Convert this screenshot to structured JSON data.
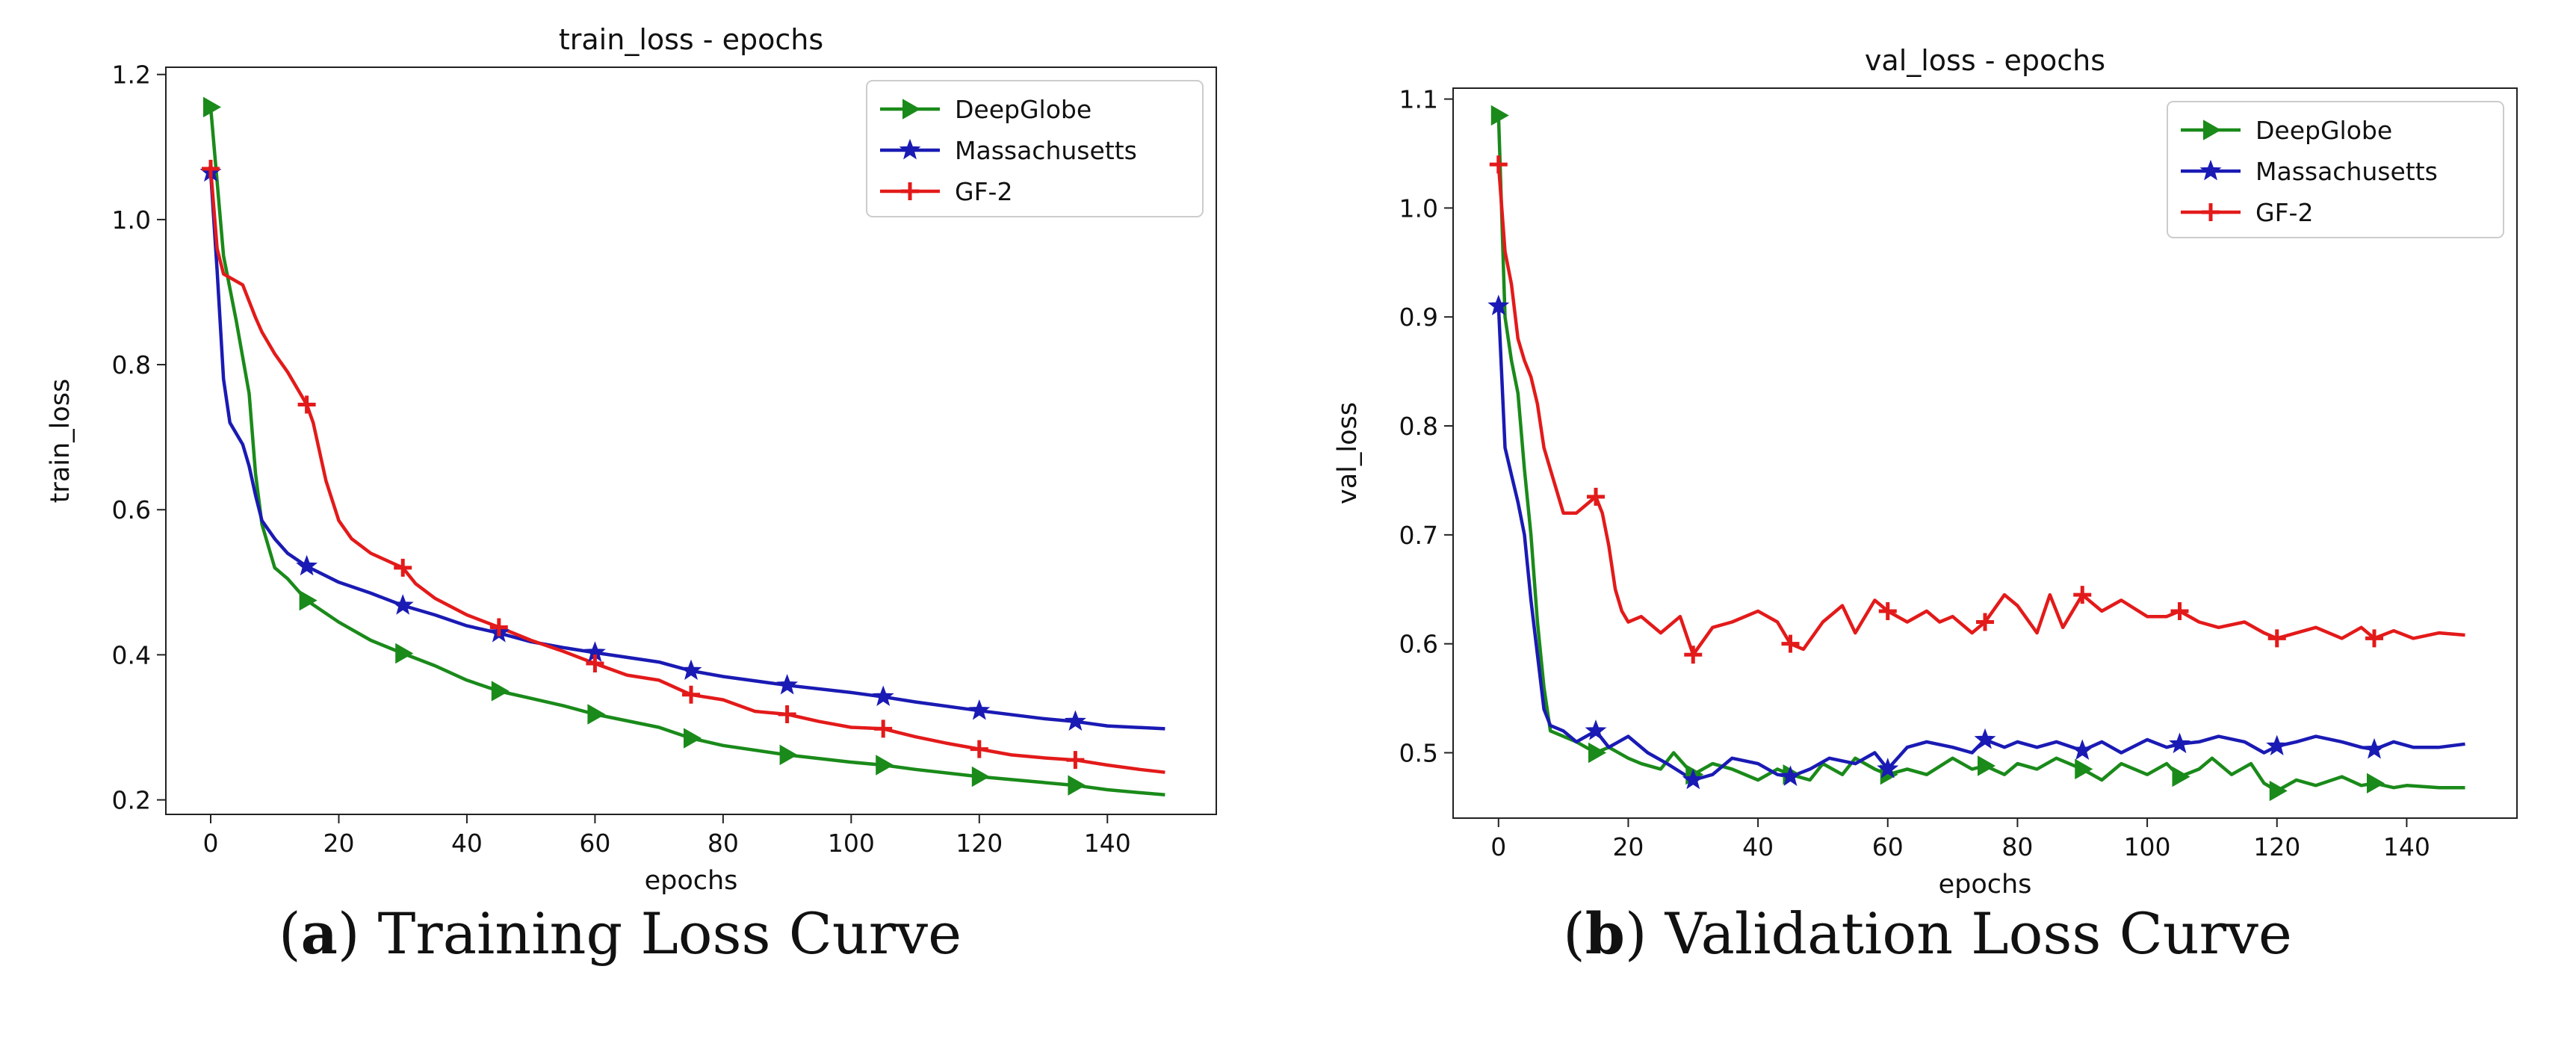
{
  "figure": {
    "captions": [
      {
        "open": "(",
        "letter": "a",
        "rest": ") Training Loss Curve"
      },
      {
        "open": "(",
        "letter": "b",
        "rest": ") Validation Loss Curve"
      }
    ]
  },
  "chart_data": [
    {
      "type": "line",
      "title": "train_loss - epochs",
      "xlabel": "epochs",
      "ylabel": "train_loss",
      "xlim": [
        -7,
        157
      ],
      "ylim": [
        0.18,
        1.21
      ],
      "xticks": [
        0,
        20,
        40,
        60,
        80,
        100,
        120,
        140
      ],
      "yticks": [
        0.2,
        0.4,
        0.6,
        0.8,
        1.0,
        1.2
      ],
      "ytick_labels": [
        "0.2",
        "0.4",
        "0.6",
        "0.8",
        "1.0",
        "1.2"
      ],
      "grid": false,
      "legend": "top-right",
      "marker_x": [
        0,
        15,
        30,
        45,
        60,
        75,
        90,
        105,
        120,
        135
      ],
      "series": [
        {
          "name": "DeepGlobe",
          "color": "#1a8a1a",
          "marker": "triangle-right",
          "x": [
            0,
            2,
            4,
            6,
            7,
            8,
            10,
            12,
            15,
            20,
            25,
            30,
            35,
            40,
            45,
            50,
            55,
            60,
            70,
            75,
            80,
            90,
            100,
            105,
            110,
            120,
            130,
            135,
            140,
            145,
            149
          ],
          "y": [
            1.155,
            0.95,
            0.86,
            0.76,
            0.65,
            0.58,
            0.52,
            0.505,
            0.475,
            0.445,
            0.42,
            0.402,
            0.385,
            0.365,
            0.35,
            0.34,
            0.33,
            0.318,
            0.3,
            0.285,
            0.275,
            0.262,
            0.252,
            0.248,
            0.242,
            0.232,
            0.224,
            0.22,
            0.214,
            0.21,
            0.207
          ]
        },
        {
          "name": "Massachusetts",
          "color": "#1a1ab4",
          "marker": "star",
          "x": [
            0,
            1,
            2,
            3,
            4,
            5,
            6,
            7,
            8,
            10,
            12,
            15,
            20,
            25,
            30,
            35,
            40,
            45,
            50,
            55,
            60,
            70,
            75,
            80,
            90,
            100,
            105,
            110,
            120,
            130,
            135,
            140,
            149
          ],
          "y": [
            1.065,
            0.93,
            0.78,
            0.72,
            0.705,
            0.69,
            0.66,
            0.62,
            0.585,
            0.56,
            0.54,
            0.522,
            0.5,
            0.485,
            0.468,
            0.455,
            0.44,
            0.43,
            0.418,
            0.41,
            0.403,
            0.39,
            0.378,
            0.37,
            0.358,
            0.348,
            0.342,
            0.335,
            0.323,
            0.312,
            0.308,
            0.302,
            0.298
          ]
        },
        {
          "name": "GF-2",
          "color": "#e31a1a",
          "marker": "plus",
          "x": [
            0,
            1,
            2,
            3,
            5,
            7,
            8,
            10,
            12,
            15,
            16,
            18,
            20,
            22,
            25,
            30,
            32,
            35,
            40,
            45,
            50,
            55,
            60,
            65,
            70,
            75,
            80,
            85,
            90,
            95,
            100,
            105,
            110,
            115,
            120,
            125,
            130,
            135,
            140,
            145,
            149
          ],
          "y": [
            1.07,
            0.96,
            0.925,
            0.92,
            0.91,
            0.865,
            0.845,
            0.815,
            0.79,
            0.745,
            0.72,
            0.64,
            0.585,
            0.56,
            0.54,
            0.52,
            0.498,
            0.478,
            0.455,
            0.438,
            0.42,
            0.405,
            0.388,
            0.372,
            0.365,
            0.345,
            0.338,
            0.322,
            0.318,
            0.308,
            0.3,
            0.298,
            0.287,
            0.278,
            0.27,
            0.262,
            0.258,
            0.255,
            0.248,
            0.242,
            0.238
          ]
        }
      ]
    },
    {
      "type": "line",
      "title": "val_loss - epochs",
      "xlabel": "epochs",
      "ylabel": "val_loss",
      "xlim": [
        -7,
        157
      ],
      "ylim": [
        0.44,
        1.11
      ],
      "xticks": [
        0,
        20,
        40,
        60,
        80,
        100,
        120,
        140
      ],
      "yticks": [
        0.5,
        0.6,
        0.7,
        0.8,
        0.9,
        1.0,
        1.1
      ],
      "ytick_labels": [
        "0.5",
        "0.6",
        "0.7",
        "0.8",
        "0.9",
        "1.0",
        "1.1"
      ],
      "grid": false,
      "legend": "top-right",
      "marker_x": [
        0,
        15,
        30,
        45,
        60,
        75,
        90,
        105,
        120,
        135
      ],
      "series": [
        {
          "name": "DeepGlobe",
          "color": "#1a8a1a",
          "marker": "triangle-right",
          "x": [
            0,
            1,
            2,
            3,
            4,
            5,
            6,
            7,
            8,
            10,
            12,
            15,
            17,
            20,
            22,
            25,
            27,
            30,
            33,
            36,
            40,
            43,
            45,
            48,
            50,
            53,
            55,
            58,
            60,
            63,
            66,
            70,
            73,
            75,
            78,
            80,
            83,
            86,
            90,
            93,
            96,
            100,
            103,
            105,
            108,
            110,
            113,
            116,
            118,
            120,
            123,
            126,
            130,
            133,
            135,
            138,
            140,
            145,
            149
          ],
          "y": [
            1.085,
            0.9,
            0.86,
            0.83,
            0.76,
            0.7,
            0.62,
            0.56,
            0.52,
            0.515,
            0.51,
            0.5,
            0.505,
            0.495,
            0.49,
            0.485,
            0.5,
            0.48,
            0.49,
            0.485,
            0.475,
            0.485,
            0.48,
            0.475,
            0.49,
            0.48,
            0.495,
            0.485,
            0.48,
            0.485,
            0.48,
            0.495,
            0.485,
            0.488,
            0.48,
            0.49,
            0.485,
            0.495,
            0.485,
            0.475,
            0.49,
            0.48,
            0.49,
            0.478,
            0.485,
            0.495,
            0.48,
            0.49,
            0.472,
            0.465,
            0.475,
            0.47,
            0.478,
            0.47,
            0.472,
            0.468,
            0.47,
            0.468,
            0.468
          ]
        },
        {
          "name": "Massachusetts",
          "color": "#1a1ab4",
          "marker": "star",
          "x": [
            0,
            1,
            2,
            3,
            4,
            5,
            6,
            7,
            8,
            10,
            12,
            15,
            17,
            20,
            23,
            26,
            30,
            33,
            36,
            40,
            43,
            45,
            48,
            51,
            55,
            58,
            60,
            63,
            66,
            70,
            73,
            75,
            78,
            80,
            83,
            86,
            90,
            93,
            96,
            100,
            103,
            105,
            108,
            111,
            115,
            118,
            120,
            123,
            126,
            130,
            133,
            135,
            138,
            141,
            145,
            149
          ],
          "y": [
            0.91,
            0.78,
            0.755,
            0.73,
            0.7,
            0.64,
            0.59,
            0.54,
            0.525,
            0.52,
            0.51,
            0.52,
            0.505,
            0.515,
            0.5,
            0.49,
            0.475,
            0.48,
            0.495,
            0.49,
            0.48,
            0.478,
            0.485,
            0.495,
            0.49,
            0.5,
            0.485,
            0.505,
            0.51,
            0.505,
            0.5,
            0.512,
            0.505,
            0.51,
            0.505,
            0.51,
            0.502,
            0.51,
            0.5,
            0.512,
            0.505,
            0.508,
            0.51,
            0.515,
            0.51,
            0.5,
            0.506,
            0.51,
            0.515,
            0.51,
            0.505,
            0.503,
            0.51,
            0.505,
            0.505,
            0.508
          ]
        },
        {
          "name": "GF-2",
          "color": "#e31a1a",
          "marker": "plus",
          "x": [
            0,
            1,
            2,
            3,
            4,
            5,
            6,
            7,
            8,
            10,
            12,
            14,
            15,
            16,
            17,
            18,
            19,
            20,
            22,
            25,
            28,
            30,
            33,
            36,
            40,
            43,
            45,
            47,
            50,
            53,
            55,
            58,
            60,
            63,
            66,
            68,
            70,
            73,
            75,
            78,
            80,
            83,
            85,
            87,
            90,
            93,
            96,
            100,
            103,
            105,
            108,
            111,
            115,
            118,
            120,
            123,
            126,
            130,
            133,
            135,
            138,
            141,
            145,
            149
          ],
          "y": [
            1.04,
            0.96,
            0.93,
            0.88,
            0.86,
            0.845,
            0.82,
            0.78,
            0.76,
            0.72,
            0.72,
            0.73,
            0.735,
            0.72,
            0.69,
            0.65,
            0.63,
            0.62,
            0.625,
            0.61,
            0.625,
            0.59,
            0.615,
            0.62,
            0.63,
            0.62,
            0.6,
            0.595,
            0.62,
            0.635,
            0.61,
            0.64,
            0.63,
            0.62,
            0.63,
            0.62,
            0.625,
            0.61,
            0.62,
            0.645,
            0.635,
            0.61,
            0.645,
            0.615,
            0.645,
            0.63,
            0.64,
            0.625,
            0.625,
            0.63,
            0.62,
            0.615,
            0.62,
            0.61,
            0.605,
            0.61,
            0.615,
            0.605,
            0.615,
            0.605,
            0.612,
            0.605,
            0.61,
            0.608
          ]
        }
      ]
    }
  ]
}
